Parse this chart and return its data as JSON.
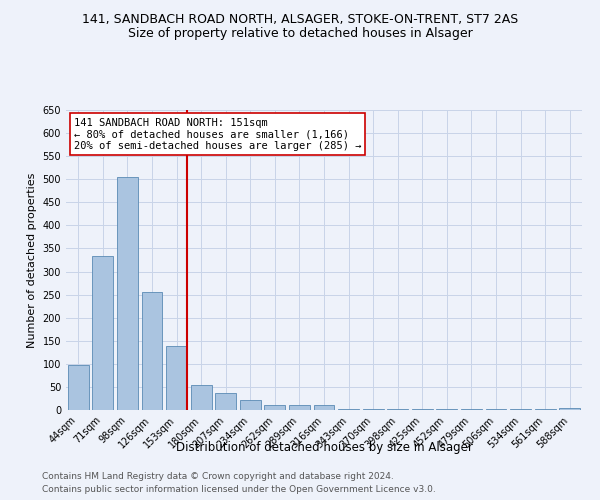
{
  "title1": "141, SANDBACH ROAD NORTH, ALSAGER, STOKE-ON-TRENT, ST7 2AS",
  "title2": "Size of property relative to detached houses in Alsager",
  "xlabel": "Distribution of detached houses by size in Alsager",
  "ylabel": "Number of detached properties",
  "categories": [
    "44sqm",
    "71sqm",
    "98sqm",
    "126sqm",
    "153sqm",
    "180sqm",
    "207sqm",
    "234sqm",
    "262sqm",
    "289sqm",
    "316sqm",
    "343sqm",
    "370sqm",
    "398sqm",
    "425sqm",
    "452sqm",
    "479sqm",
    "506sqm",
    "534sqm",
    "561sqm",
    "588sqm"
  ],
  "values": [
    97,
    333,
    505,
    256,
    139,
    54,
    37,
    22,
    10,
    10,
    10,
    3,
    3,
    3,
    3,
    3,
    3,
    3,
    3,
    3,
    5
  ],
  "bar_color": "#aac4e0",
  "bar_edge_color": "#5a8ab5",
  "vline_x_index": 4,
  "vline_color": "#cc0000",
  "annotation_text": "141 SANDBACH ROAD NORTH: 151sqm\n← 80% of detached houses are smaller (1,166)\n20% of semi-detached houses are larger (285) →",
  "annotation_box_color": "#ffffff",
  "annotation_box_edge_color": "#cc0000",
  "ylim": [
    0,
    650
  ],
  "yticks": [
    0,
    50,
    100,
    150,
    200,
    250,
    300,
    350,
    400,
    450,
    500,
    550,
    600,
    650
  ],
  "footer1": "Contains HM Land Registry data © Crown copyright and database right 2024.",
  "footer2": "Contains public sector information licensed under the Open Government Licence v3.0.",
  "background_color": "#eef2fa",
  "grid_color": "#c8d4e8",
  "title1_fontsize": 9,
  "title2_fontsize": 9,
  "xlabel_fontsize": 8.5,
  "ylabel_fontsize": 8,
  "tick_fontsize": 7,
  "annotation_fontsize": 7.5,
  "footer_fontsize": 6.5
}
